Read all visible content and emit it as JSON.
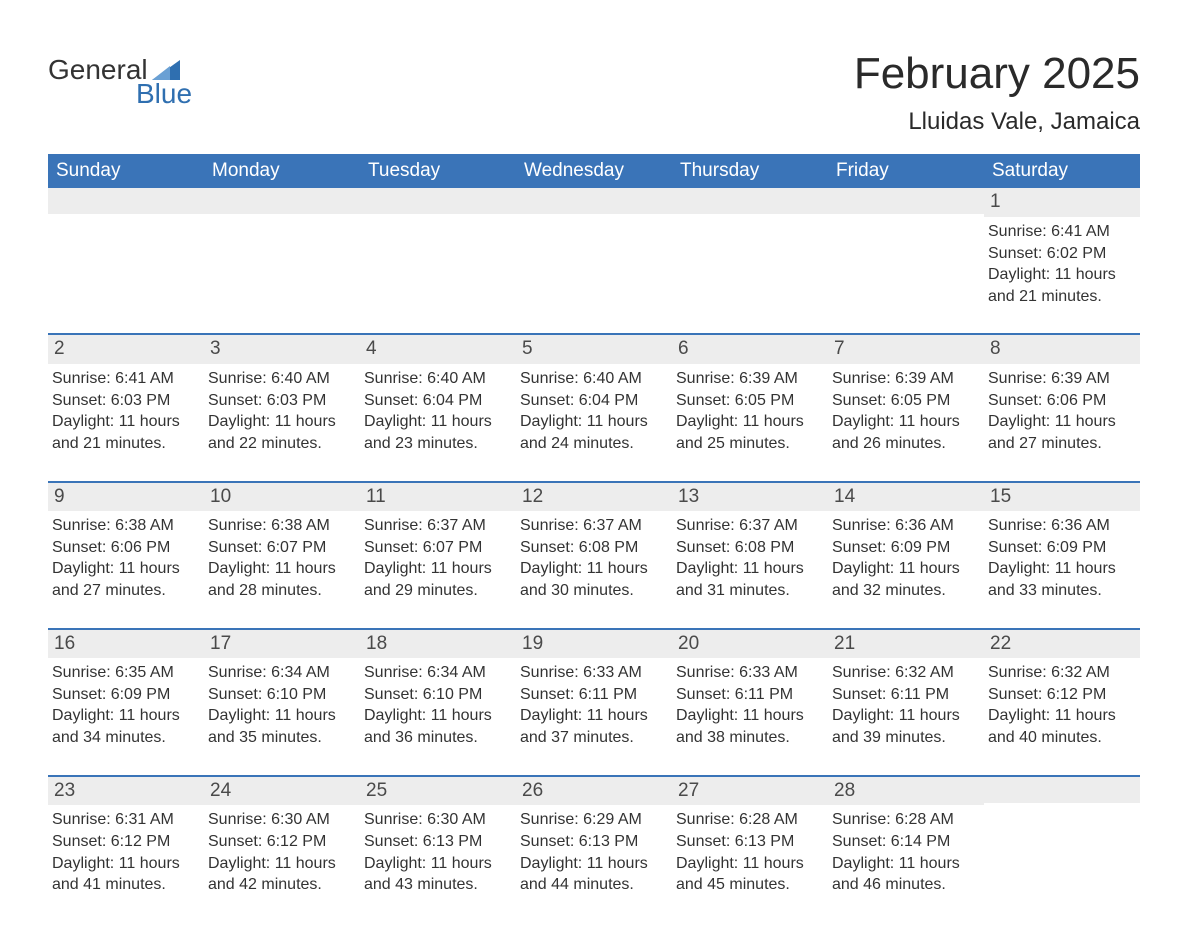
{
  "brand": {
    "word1": "General",
    "word2": "Blue",
    "text_color": "#333333",
    "accent_color": "#2f6fb0"
  },
  "title": {
    "month_year": "February 2025",
    "location": "Lluidas Vale, Jamaica"
  },
  "colors": {
    "header_bg": "#3a74b8",
    "header_text": "#ffffff",
    "daynum_bg": "#ededed",
    "daynum_text": "#4a4a4a",
    "body_text": "#333333",
    "week_border": "#3a74b8",
    "page_bg": "#ffffff"
  },
  "fonts": {
    "title_size_pt": 33,
    "location_size_pt": 18,
    "weekday_size_pt": 14,
    "daynum_size_pt": 14,
    "detail_size_pt": 12,
    "family": "Arial"
  },
  "weekdays": [
    "Sunday",
    "Monday",
    "Tuesday",
    "Wednesday",
    "Thursday",
    "Friday",
    "Saturday"
  ],
  "labels": {
    "sunrise_prefix": "Sunrise: ",
    "sunset_prefix": "Sunset: ",
    "daylight_prefix": "Daylight: "
  },
  "weeks": [
    [
      null,
      null,
      null,
      null,
      null,
      null,
      {
        "day": "1",
        "sunrise": "6:41 AM",
        "sunset": "6:02 PM",
        "daylight": "11 hours and 21 minutes."
      }
    ],
    [
      {
        "day": "2",
        "sunrise": "6:41 AM",
        "sunset": "6:03 PM",
        "daylight": "11 hours and 21 minutes."
      },
      {
        "day": "3",
        "sunrise": "6:40 AM",
        "sunset": "6:03 PM",
        "daylight": "11 hours and 22 minutes."
      },
      {
        "day": "4",
        "sunrise": "6:40 AM",
        "sunset": "6:04 PM",
        "daylight": "11 hours and 23 minutes."
      },
      {
        "day": "5",
        "sunrise": "6:40 AM",
        "sunset": "6:04 PM",
        "daylight": "11 hours and 24 minutes."
      },
      {
        "day": "6",
        "sunrise": "6:39 AM",
        "sunset": "6:05 PM",
        "daylight": "11 hours and 25 minutes."
      },
      {
        "day": "7",
        "sunrise": "6:39 AM",
        "sunset": "6:05 PM",
        "daylight": "11 hours and 26 minutes."
      },
      {
        "day": "8",
        "sunrise": "6:39 AM",
        "sunset": "6:06 PM",
        "daylight": "11 hours and 27 minutes."
      }
    ],
    [
      {
        "day": "9",
        "sunrise": "6:38 AM",
        "sunset": "6:06 PM",
        "daylight": "11 hours and 27 minutes."
      },
      {
        "day": "10",
        "sunrise": "6:38 AM",
        "sunset": "6:07 PM",
        "daylight": "11 hours and 28 minutes."
      },
      {
        "day": "11",
        "sunrise": "6:37 AM",
        "sunset": "6:07 PM",
        "daylight": "11 hours and 29 minutes."
      },
      {
        "day": "12",
        "sunrise": "6:37 AM",
        "sunset": "6:08 PM",
        "daylight": "11 hours and 30 minutes."
      },
      {
        "day": "13",
        "sunrise": "6:37 AM",
        "sunset": "6:08 PM",
        "daylight": "11 hours and 31 minutes."
      },
      {
        "day": "14",
        "sunrise": "6:36 AM",
        "sunset": "6:09 PM",
        "daylight": "11 hours and 32 minutes."
      },
      {
        "day": "15",
        "sunrise": "6:36 AM",
        "sunset": "6:09 PM",
        "daylight": "11 hours and 33 minutes."
      }
    ],
    [
      {
        "day": "16",
        "sunrise": "6:35 AM",
        "sunset": "6:09 PM",
        "daylight": "11 hours and 34 minutes."
      },
      {
        "day": "17",
        "sunrise": "6:34 AM",
        "sunset": "6:10 PM",
        "daylight": "11 hours and 35 minutes."
      },
      {
        "day": "18",
        "sunrise": "6:34 AM",
        "sunset": "6:10 PM",
        "daylight": "11 hours and 36 minutes."
      },
      {
        "day": "19",
        "sunrise": "6:33 AM",
        "sunset": "6:11 PM",
        "daylight": "11 hours and 37 minutes."
      },
      {
        "day": "20",
        "sunrise": "6:33 AM",
        "sunset": "6:11 PM",
        "daylight": "11 hours and 38 minutes."
      },
      {
        "day": "21",
        "sunrise": "6:32 AM",
        "sunset": "6:11 PM",
        "daylight": "11 hours and 39 minutes."
      },
      {
        "day": "22",
        "sunrise": "6:32 AM",
        "sunset": "6:12 PM",
        "daylight": "11 hours and 40 minutes."
      }
    ],
    [
      {
        "day": "23",
        "sunrise": "6:31 AM",
        "sunset": "6:12 PM",
        "daylight": "11 hours and 41 minutes."
      },
      {
        "day": "24",
        "sunrise": "6:30 AM",
        "sunset": "6:12 PM",
        "daylight": "11 hours and 42 minutes."
      },
      {
        "day": "25",
        "sunrise": "6:30 AM",
        "sunset": "6:13 PM",
        "daylight": "11 hours and 43 minutes."
      },
      {
        "day": "26",
        "sunrise": "6:29 AM",
        "sunset": "6:13 PM",
        "daylight": "11 hours and 44 minutes."
      },
      {
        "day": "27",
        "sunrise": "6:28 AM",
        "sunset": "6:13 PM",
        "daylight": "11 hours and 45 minutes."
      },
      {
        "day": "28",
        "sunrise": "6:28 AM",
        "sunset": "6:14 PM",
        "daylight": "11 hours and 46 minutes."
      },
      null
    ]
  ]
}
